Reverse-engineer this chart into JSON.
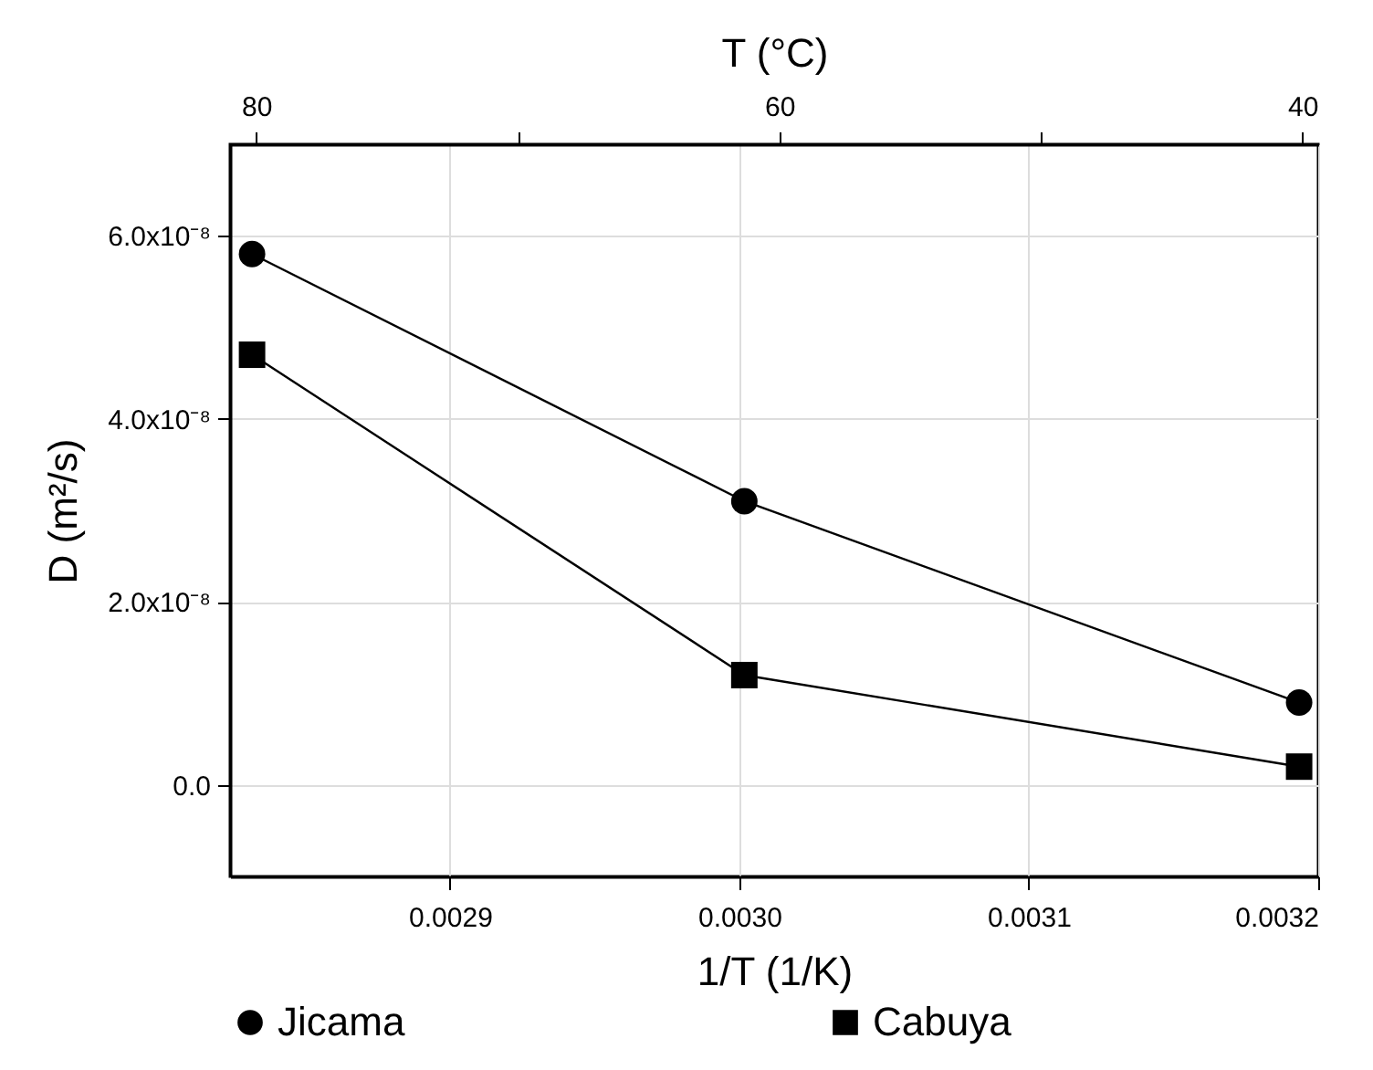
{
  "chart_data": {
    "type": "line",
    "xlabel": "1/T (1/K)",
    "ylabel": "D (m²/s)",
    "x2label": "T (°C)",
    "x": [
      0.0028316,
      0.0030017,
      0.0031934
    ],
    "series": [
      {
        "name": "Jicama",
        "color": "#000000",
        "marker": "circle",
        "values": [
          5.8e-08,
          3.1e-08,
          9e-09
        ]
      },
      {
        "name": "Cabuya",
        "color": "#000000",
        "marker": "square",
        "values": [
          4.7e-08,
          1.2e-08,
          2e-09
        ]
      }
    ],
    "xlim": [
      0.002824,
      0.0032
    ],
    "xticks": [
      0.0029,
      {
        "value": 0.003,
        "label": "0.0030"
      },
      0.0031,
      0.0032
    ],
    "x2lim": [
      81,
      39.4
    ],
    "x2ticks": [
      80,
      {
        "value": 70,
        "label": null
      },
      60,
      {
        "value": 50,
        "label": null
      },
      40
    ],
    "ylim": [
      -1e-08,
      7e-08
    ],
    "yticks": [
      {
        "value": 0,
        "label": "0.0"
      },
      {
        "value": 2e-08,
        "label": "2.0x10⁻⁸"
      },
      {
        "value": 4e-08,
        "label": "4.0x10⁻⁸"
      },
      {
        "value": 6e-08,
        "label": "6.0x10⁻⁸"
      }
    ],
    "grid": true,
    "legend": "bottom",
    "line_style": "solid"
  }
}
